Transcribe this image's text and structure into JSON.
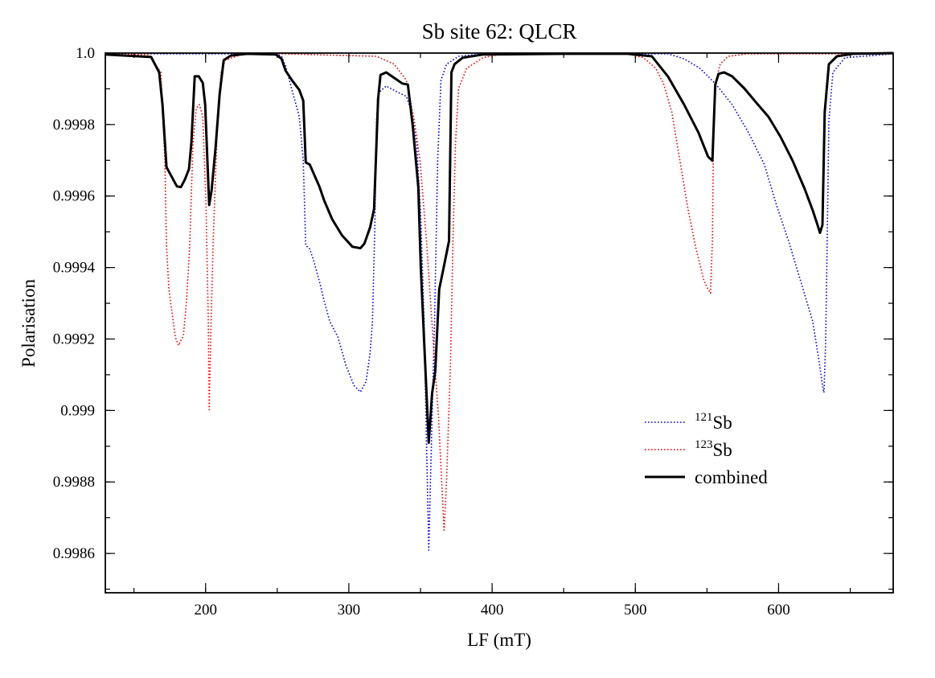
{
  "chart_data": {
    "type": "line",
    "title": "Sb site 62: QLCR",
    "xlabel": "LF (mT)",
    "ylabel": "Polarisation",
    "xlim": [
      130,
      680
    ],
    "ylim": [
      0.99849,
      1.0
    ],
    "grid": false,
    "legend_position": "lower-right",
    "x_ticks": [
      200,
      300,
      400,
      500,
      600
    ],
    "x_tick_labels": [
      "200",
      "300",
      "400",
      "500",
      "600"
    ],
    "x_minor_step": 50,
    "y_ticks": [
      1.0,
      0.9998,
      0.9996,
      0.9994,
      0.9992,
      0.999,
      0.9988,
      0.9986
    ],
    "y_tick_labels": [
      "1.0",
      "0.9998",
      "0.9996",
      "0.9994",
      "0.9992",
      "0.999",
      "0.9988",
      "0.9986"
    ],
    "y_minor_step": 0.0001,
    "series": [
      {
        "name": "121Sb",
        "label_mass": "121",
        "label_element": "Sb",
        "color": "#0000ff",
        "style": "dotted",
        "points": [
          [
            130,
            0.999998
          ],
          [
            249.1,
            0.999998
          ],
          [
            253,
            0.999991
          ],
          [
            255.8,
            0.999964
          ],
          [
            261.5,
            0.999879
          ],
          [
            265.4,
            0.999822
          ],
          [
            268.2,
            0.999699
          ],
          [
            269.9,
            0.999462
          ],
          [
            272.7,
            0.999452
          ],
          [
            275.5,
            0.999418
          ],
          [
            279.4,
            0.999362
          ],
          [
            282.8,
            0.999306
          ],
          [
            286.7,
            0.999249
          ],
          [
            292.4,
            0.999205
          ],
          [
            298,
            0.999126
          ],
          [
            303.6,
            0.99907
          ],
          [
            308.1,
            0.999052
          ],
          [
            312,
            0.999081
          ],
          [
            314.8,
            0.99916
          ],
          [
            316.5,
            0.999249
          ],
          [
            318.2,
            0.999519
          ],
          [
            319.3,
            0.999811
          ],
          [
            321,
            0.99989
          ],
          [
            326.1,
            0.999908
          ],
          [
            334.5,
            0.99989
          ],
          [
            340.1,
            0.999879
          ],
          [
            344,
            0.999834
          ],
          [
            347.4,
            0.999744
          ],
          [
            350.2,
            0.999542
          ],
          [
            352.5,
            0.999249
          ],
          [
            354.2,
            0.998912
          ],
          [
            355.8,
            0.998609
          ],
          [
            357.5,
            0.99889
          ],
          [
            359.8,
            0.999249
          ],
          [
            362,
            0.999699
          ],
          [
            364.3,
            0.999924
          ],
          [
            368.2,
            0.999969
          ],
          [
            376.6,
            0.999991
          ],
          [
            393.5,
            0.999998
          ],
          [
            522.7,
            0.999998
          ],
          [
            534,
            0.999984
          ],
          [
            545.2,
            0.999957
          ],
          [
            556.4,
            0.999912
          ],
          [
            567.6,
            0.999856
          ],
          [
            578.9,
            0.999778
          ],
          [
            590.1,
            0.999688
          ],
          [
            598.5,
            0.999575
          ],
          [
            607,
            0.999474
          ],
          [
            615.4,
            0.999362
          ],
          [
            623.8,
            0.999249
          ],
          [
            628.3,
            0.999137
          ],
          [
            630.6,
            0.99907
          ],
          [
            631.7,
            0.99905
          ],
          [
            632.8,
            0.999182
          ],
          [
            633.9,
            0.999474
          ],
          [
            635.1,
            0.999811
          ],
          [
            637.9,
            0.999946
          ],
          [
            646.3,
            0.999987
          ],
          [
            680,
            0.999998
          ]
        ]
      },
      {
        "name": "123Sb",
        "label_mass": "123",
        "label_element": "Sb",
        "color": "#ff0000",
        "style": "dotted",
        "points": [
          [
            130,
            0.999996
          ],
          [
            160.3,
            0.999996
          ],
          [
            168.8,
            0.999946
          ],
          [
            171.6,
            0.999699
          ],
          [
            172.7,
            0.999462
          ],
          [
            174.4,
            0.999339
          ],
          [
            178.9,
            0.999205
          ],
          [
            181.1,
            0.999182
          ],
          [
            184.5,
            0.99921
          ],
          [
            186.7,
            0.999306
          ],
          [
            189,
            0.999467
          ],
          [
            191.2,
            0.999744
          ],
          [
            193.5,
            0.999845
          ],
          [
            195.7,
            0.999856
          ],
          [
            198,
            0.999822
          ],
          [
            200.2,
            0.999587
          ],
          [
            201.9,
            0.999249
          ],
          [
            202.5,
            0.999002
          ],
          [
            203.6,
            0.999205
          ],
          [
            205.3,
            0.999474
          ],
          [
            208.1,
            0.999789
          ],
          [
            210.9,
            0.999946
          ],
          [
            213.7,
            0.99998
          ],
          [
            224.9,
            0.999996
          ],
          [
            253,
            0.999998
          ],
          [
            319.3,
            0.999991
          ],
          [
            331.7,
            0.999969
          ],
          [
            340.1,
            0.999924
          ],
          [
            345.7,
            0.999811
          ],
          [
            349.7,
            0.999699
          ],
          [
            354.2,
            0.999474
          ],
          [
            358.7,
            0.999205
          ],
          [
            362.6,
            0.99898
          ],
          [
            365.4,
            0.998755
          ],
          [
            366.5,
            0.998665
          ],
          [
            368.2,
            0.9988
          ],
          [
            371,
            0.999137
          ],
          [
            372.7,
            0.999474
          ],
          [
            374.4,
            0.999744
          ],
          [
            376.6,
            0.999901
          ],
          [
            382.2,
            0.999957
          ],
          [
            393.5,
            0.999987
          ],
          [
            404.7,
            0.999996
          ],
          [
            494.6,
            0.999998
          ],
          [
            505.8,
            0.999987
          ],
          [
            514.3,
            0.999957
          ],
          [
            519.9,
            0.999912
          ],
          [
            525.5,
            0.999834
          ],
          [
            531.1,
            0.999699
          ],
          [
            536.7,
            0.999564
          ],
          [
            542.4,
            0.999452
          ],
          [
            548,
            0.999362
          ],
          [
            550.8,
            0.999339
          ],
          [
            552.5,
            0.999328
          ],
          [
            553.8,
            0.999474
          ],
          [
            554.7,
            0.999811
          ],
          [
            556.4,
            0.999924
          ],
          [
            559.2,
            0.999969
          ],
          [
            564.8,
            0.999991
          ],
          [
            578.9,
            0.999998
          ],
          [
            680,
            0.999998
          ]
        ]
      },
      {
        "name": "combined",
        "color": "#000000",
        "style": "solid",
        "points": [
          [
            130,
            0.999996
          ],
          [
            162,
            0.999989
          ],
          [
            167.6,
            0.999946
          ],
          [
            169.9,
            0.999856
          ],
          [
            172.7,
            0.999681
          ],
          [
            180,
            0.999627
          ],
          [
            182.8,
            0.999625
          ],
          [
            185.6,
            0.999647
          ],
          [
            188.4,
            0.999676
          ],
          [
            190.1,
            0.999751
          ],
          [
            192.4,
            0.999935
          ],
          [
            195.2,
            0.999935
          ],
          [
            198,
            0.999917
          ],
          [
            199.7,
            0.999856
          ],
          [
            202.5,
            0.999575
          ],
          [
            204.2,
            0.999616
          ],
          [
            207,
            0.999737
          ],
          [
            209.8,
            0.999885
          ],
          [
            212.6,
            0.99998
          ],
          [
            217.6,
            0.999993
          ],
          [
            228.9,
            0.999998
          ],
          [
            249.1,
            0.999996
          ],
          [
            253,
            0.999984
          ],
          [
            255.8,
            0.999951
          ],
          [
            260.3,
            0.999924
          ],
          [
            265.4,
            0.999897
          ],
          [
            268.2,
            0.999867
          ],
          [
            269.9,
            0.999694
          ],
          [
            272.7,
            0.999688
          ],
          [
            279.4,
            0.999627
          ],
          [
            282.8,
            0.999587
          ],
          [
            288.4,
            0.999535
          ],
          [
            295.2,
            0.99949
          ],
          [
            302.5,
            0.999458
          ],
          [
            308.1,
            0.999454
          ],
          [
            310.9,
            0.999467
          ],
          [
            314.8,
            0.999512
          ],
          [
            317.6,
            0.999564
          ],
          [
            320.4,
            0.999872
          ],
          [
            322.1,
            0.999939
          ],
          [
            326.1,
            0.999946
          ],
          [
            337.3,
            0.999915
          ],
          [
            341.2,
            0.999912
          ],
          [
            344.6,
            0.999796
          ],
          [
            348.5,
            0.999625
          ],
          [
            350.2,
            0.9994
          ],
          [
            355.8,
            0.99891
          ],
          [
            358.1,
            0.999047
          ],
          [
            360.3,
            0.99911
          ],
          [
            363.1,
            0.999339
          ],
          [
            366,
            0.999396
          ],
          [
            369.9,
            0.999474
          ],
          [
            371.6,
            0.999946
          ],
          [
            373.8,
            0.999969
          ],
          [
            379.4,
            0.999987
          ],
          [
            393.5,
            0.999996
          ],
          [
            449.7,
            0.999998
          ],
          [
            494.6,
            0.999998
          ],
          [
            511.5,
            0.999991
          ],
          [
            522.7,
            0.999935
          ],
          [
            534,
            0.999856
          ],
          [
            544,
            0.999778
          ],
          [
            550.8,
            0.99971
          ],
          [
            553.8,
            0.999699
          ],
          [
            555.8,
            0.999912
          ],
          [
            558.1,
            0.999942
          ],
          [
            562,
            0.999946
          ],
          [
            567.6,
            0.999935
          ],
          [
            576.1,
            0.999901
          ],
          [
            584.5,
            0.999861
          ],
          [
            592.9,
            0.999822
          ],
          [
            601.3,
            0.999766
          ],
          [
            609.8,
            0.999699
          ],
          [
            618.2,
            0.99962
          ],
          [
            623.8,
            0.99956
          ],
          [
            627.2,
            0.999519
          ],
          [
            628.9,
            0.999497
          ],
          [
            630.6,
            0.999519
          ],
          [
            632.2,
            0.999834
          ],
          [
            635.1,
            0.999969
          ],
          [
            640.7,
            0.999991
          ],
          [
            651.9,
            0.999998
          ],
          [
            680,
            1.0
          ]
        ]
      }
    ]
  }
}
